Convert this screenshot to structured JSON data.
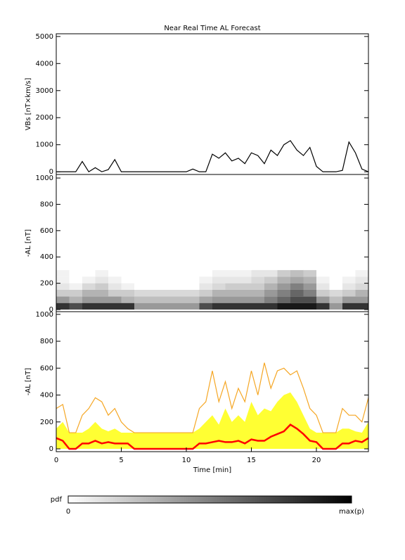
{
  "chart_data": [
    {
      "type": "line",
      "title": "Near Real Time AL Forecast",
      "ylabel": "VBs [nT×km/s]",
      "xlim": [
        0,
        24
      ],
      "ylim": [
        -100,
        5100
      ],
      "yticks": [
        0,
        1000,
        2000,
        3000,
        4000,
        5000
      ],
      "x": [
        0,
        0.5,
        1,
        1.5,
        2,
        2.5,
        3,
        3.5,
        4,
        4.5,
        5,
        5.5,
        6,
        6.5,
        7,
        7.5,
        8,
        8.5,
        9,
        9.5,
        10,
        10.5,
        11,
        11.5,
        12,
        12.5,
        13,
        13.5,
        14,
        14.5,
        15,
        15.5,
        16,
        16.5,
        17,
        17.5,
        18,
        18.5,
        19,
        19.5,
        20,
        20.5,
        21,
        21.5,
        22,
        22.5,
        23,
        23.5,
        24
      ],
      "series": [
        {
          "color": "#000000",
          "values": [
            0,
            0,
            0,
            0,
            380,
            0,
            150,
            0,
            80,
            450,
            0,
            0,
            0,
            0,
            0,
            0,
            0,
            0,
            0,
            0,
            0,
            100,
            0,
            0,
            650,
            500,
            700,
            400,
            500,
            300,
            700,
            600,
            300,
            800,
            600,
            1000,
            1150,
            800,
            600,
            900,
            200,
            0,
            0,
            0,
            50,
            1100,
            700,
            100,
            0
          ]
        }
      ]
    },
    {
      "type": "heatmap",
      "ylabel": "-AL [nT]",
      "xlim": [
        0,
        24
      ],
      "ylim": [
        -16,
        1027
      ],
      "yticks": [
        0,
        200,
        400,
        600,
        800,
        1000
      ],
      "bins_x": [
        0,
        1,
        2,
        3,
        4,
        5,
        6,
        7,
        8,
        9,
        10,
        11,
        12,
        13,
        14,
        15,
        16,
        17,
        18,
        19,
        20,
        21,
        22,
        23,
        24
      ],
      "bins_y": [
        0,
        50,
        100,
        150,
        200,
        250,
        300
      ],
      "z": [
        [
          0.8,
          0.7,
          0.8,
          0.8,
          0.8,
          0.8,
          0.4,
          0.4,
          0.4,
          0.4,
          0.4,
          0.7,
          0.8,
          0.8,
          0.8,
          0.8,
          0.8,
          0.9,
          0.9,
          0.9,
          0.8,
          0.4,
          0.8,
          0.8
        ],
        [
          0.4,
          0.3,
          0.4,
          0.4,
          0.4,
          0.3,
          0.25,
          0.25,
          0.25,
          0.25,
          0.25,
          0.35,
          0.4,
          0.4,
          0.4,
          0.4,
          0.5,
          0.6,
          0.7,
          0.7,
          0.4,
          0.25,
          0.4,
          0.4
        ],
        [
          0.2,
          0.2,
          0.3,
          0.3,
          0.2,
          0.2,
          0.15,
          0.15,
          0.15,
          0.15,
          0.15,
          0.2,
          0.3,
          0.3,
          0.3,
          0.3,
          0.4,
          0.5,
          0.6,
          0.5,
          0.2,
          0.15,
          0.2,
          0.3
        ],
        [
          0.1,
          0.05,
          0.15,
          0.2,
          0.1,
          0.05,
          0,
          0,
          0,
          0,
          0,
          0.1,
          0.15,
          0.2,
          0.2,
          0.2,
          0.3,
          0.4,
          0.5,
          0.4,
          0.1,
          0,
          0.1,
          0.15
        ],
        [
          0.05,
          0,
          0.05,
          0.1,
          0.05,
          0,
          0,
          0,
          0,
          0,
          0,
          0.05,
          0.1,
          0.1,
          0.1,
          0.15,
          0.2,
          0.3,
          0.35,
          0.3,
          0.05,
          0,
          0.05,
          0.1
        ],
        [
          0.05,
          0,
          0,
          0.05,
          0,
          0,
          0,
          0,
          0,
          0,
          0,
          0,
          0.05,
          0.05,
          0.05,
          0.1,
          0.1,
          0.2,
          0.25,
          0.2,
          0,
          0,
          0,
          0.05
        ]
      ]
    },
    {
      "type": "area",
      "ylabel": "-AL [nT]",
      "xlabel": "Time [min]",
      "xlim": [
        0,
        24
      ],
      "ylim": [
        -21,
        1020
      ],
      "yticks": [
        0,
        200,
        400,
        600,
        800,
        1000
      ],
      "xticks": [
        0,
        5,
        10,
        15,
        20
      ],
      "x": [
        0,
        0.5,
        1,
        1.5,
        2,
        2.5,
        3,
        3.5,
        4,
        4.5,
        5,
        5.5,
        6,
        6.5,
        7,
        7.5,
        8,
        8.5,
        9,
        9.5,
        10,
        10.5,
        11,
        11.5,
        12,
        12.5,
        13,
        13.5,
        14,
        14.5,
        15,
        15.5,
        16,
        16.5,
        17,
        17.5,
        18,
        18.5,
        19,
        19.5,
        20,
        20.5,
        21,
        21.5,
        22,
        22.5,
        23,
        23.5,
        24
      ],
      "series": [
        {
          "style": "area",
          "color": "#ffff33",
          "values": [
            150,
            200,
            120,
            120,
            120,
            150,
            200,
            150,
            130,
            150,
            120,
            120,
            120,
            120,
            120,
            120,
            120,
            120,
            120,
            120,
            120,
            120,
            150,
            200,
            250,
            180,
            300,
            200,
            250,
            200,
            350,
            250,
            300,
            280,
            350,
            400,
            420,
            350,
            250,
            150,
            120,
            120,
            120,
            120,
            150,
            150,
            130,
            120,
            200
          ]
        },
        {
          "style": "line",
          "color": "#f5a623",
          "values": [
            300,
            330,
            120,
            120,
            250,
            300,
            380,
            350,
            250,
            300,
            200,
            150,
            120,
            120,
            120,
            120,
            120,
            120,
            120,
            120,
            120,
            120,
            300,
            350,
            580,
            350,
            500,
            300,
            450,
            350,
            580,
            400,
            640,
            450,
            580,
            600,
            550,
            580,
            450,
            300,
            250,
            120,
            120,
            120,
            300,
            250,
            250,
            200,
            380
          ]
        },
        {
          "style": "line",
          "color": "#ff0000",
          "width": 2.5,
          "values": [
            80,
            60,
            0,
            0,
            40,
            40,
            60,
            40,
            50,
            40,
            40,
            40,
            0,
            0,
            0,
            0,
            0,
            0,
            0,
            0,
            0,
            0,
            40,
            40,
            50,
            60,
            50,
            50,
            60,
            40,
            70,
            60,
            60,
            90,
            110,
            130,
            180,
            150,
            110,
            60,
            50,
            0,
            0,
            0,
            40,
            40,
            60,
            50,
            80
          ]
        }
      ]
    }
  ],
  "colorbar": {
    "label": "pdf",
    "min_label": "0",
    "max_label": "max(p)"
  }
}
